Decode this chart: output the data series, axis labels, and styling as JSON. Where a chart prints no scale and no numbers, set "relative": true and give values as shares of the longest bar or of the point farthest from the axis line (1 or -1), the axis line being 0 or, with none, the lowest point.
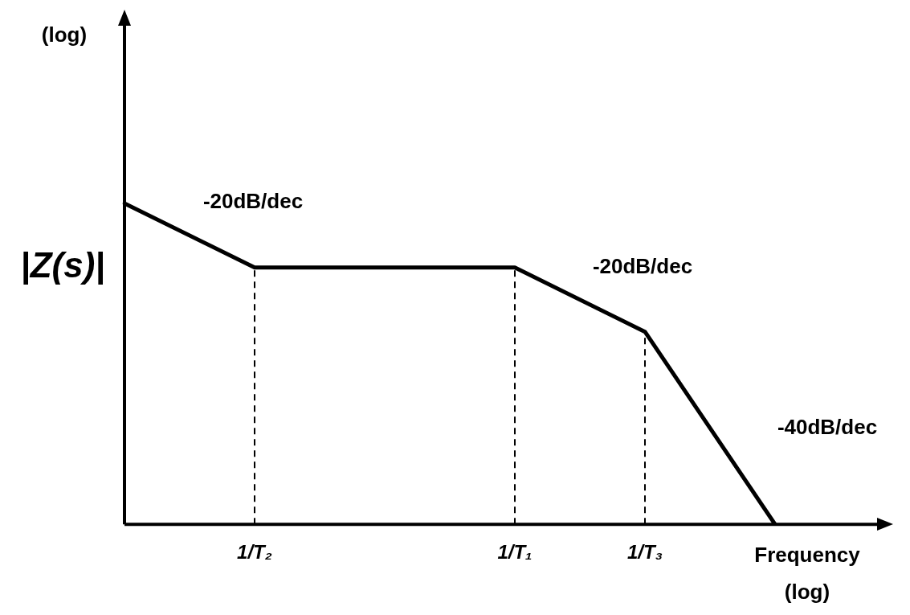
{
  "chart_data": {
    "type": "line",
    "relative": true,
    "xlabel": "Frequency\n(log)",
    "ylabel": "|Z(s)|",
    "categories": [
      null,
      "1/T₂",
      null,
      "1/T₁",
      "1/T₃",
      null
    ],
    "series": [
      {
        "color": "#000000",
        "values": [
          1,
          0.8,
          0.8,
          0.8,
          0.6,
          0
        ]
      }
    ],
    "marker": "none",
    "line_style": "solid",
    "legend": false,
    "grid": false,
    "ref_lines": [
      {
        "axis": "x",
        "value": "1/T₂",
        "line_style": "dashed",
        "color": "#000000"
      },
      {
        "axis": "x",
        "value": "1/T₁",
        "line_style": "dashed",
        "color": "#000000"
      },
      {
        "axis": "x",
        "value": "1/T₃",
        "line_style": "dashed",
        "color": "#000000"
      }
    ],
    "annotations": [
      "(log)",
      "-20dB/dec",
      "-20dB/dec",
      "-40dB/dec"
    ]
  }
}
